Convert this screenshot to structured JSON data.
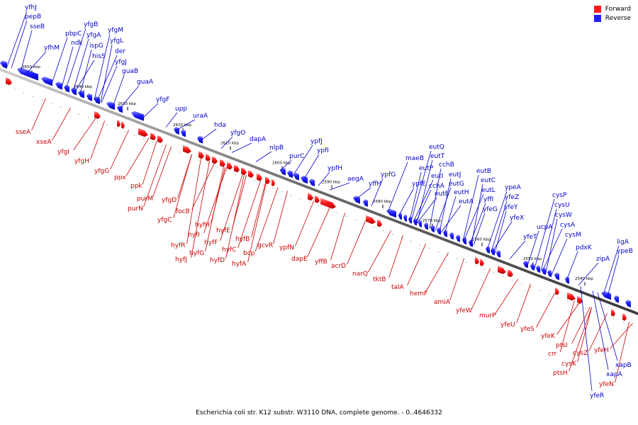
{
  "caption": "Escherichia coli str. K12 substr. W3110 DNA, complete genome. - 0..4646332",
  "legend": {
    "forward_label": "Forward",
    "reverse_label": "Reverse",
    "forward_color": "#ff1a1a",
    "reverse_color": "#1f1fff"
  },
  "colors": {
    "forward_label_color": "#cc0000",
    "reverse_label_color": "#0000cc",
    "backbone": "#6a6a6a"
  },
  "ticks": [
    "2650 kbp",
    "2640 kbp",
    "2630 kbp",
    "2620 kbp",
    "2610 kbp",
    "2600 kbp",
    "2590 kbp",
    "2580 kbp",
    "2570 kbp",
    "2560 kbp",
    "2550 kbp",
    "2540 kbp"
  ],
  "reverse_labels": [
    "yfhJ",
    "pepB",
    "sseB",
    "yfhM",
    "pbpC",
    "ndk",
    "yfgB",
    "yfgA",
    "ispG",
    "hisS",
    "yfgM",
    "yfgL",
    "der",
    "yfgJ",
    "guaB",
    "guaA",
    "yfgF",
    "upp",
    "uraA",
    "hda",
    "yfgO",
    "dapA",
    "nlpB",
    "purC",
    "ypfJ",
    "ypfI",
    "ypfH",
    "aegA",
    "yffH",
    "ypfG",
    "maeB",
    "ypfE",
    "eutP",
    "eutQ",
    "eutT",
    "cchB",
    "eutI",
    "cchA",
    "eutJ",
    "eutE",
    "eutG",
    "eutH",
    "eutA",
    "eutB",
    "eutC",
    "eutL",
    "yffI",
    "yfeG",
    "ypeA",
    "yfeZ",
    "yfeY",
    "yfeX",
    "yfeT",
    "ucpA",
    "cysP",
    "cysU",
    "cysW",
    "cysA",
    "cysM",
    "pdxK",
    "zipA",
    "ligA",
    "ypeB",
    "xapB",
    "xapA",
    "yfeR"
  ],
  "forward_labels": [
    "sseA",
    "xseA",
    "yfgI",
    "yfgH",
    "yfgG",
    "ppx",
    "ppk",
    "purM",
    "purN",
    "yfgD",
    "yfgC",
    "focB",
    "hyfR",
    "hyfJ",
    "hyfI",
    "hyfH",
    "hyfG",
    "hyfF",
    "hyfE",
    "hyfD",
    "hyfC",
    "hyfB",
    "hyfA",
    "bcp",
    "gcvR",
    "ypfN",
    "dapE",
    "yffB",
    "acrD",
    "narQ",
    "tktB",
    "talA",
    "hemF",
    "amiA",
    "yfeW",
    "murP",
    "yfeU",
    "yfeS",
    "yfeK",
    "crr",
    "ptsI",
    "ptsH",
    "cysK",
    "cysZ",
    "yfeH",
    "yfeN"
  ]
}
